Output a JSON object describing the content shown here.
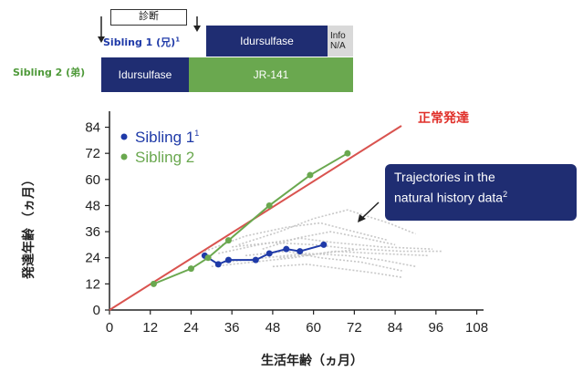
{
  "timeline": {
    "diagnosis_label": "診断",
    "sibling1_label": "Sibling 1 (兄)",
    "sibling1_sup": "1",
    "sibling2_label": "Sibling 2 (弟)",
    "bar_s1_drug": "Idursulfase",
    "bar_s1_info": "Info N/A",
    "bar_s2_drug1": "Idursulfase",
    "bar_s2_drug2": "JR-141",
    "colors": {
      "navy": "#1f2d72",
      "green": "#6aa84f",
      "gray": "#d9d9d9"
    }
  },
  "chart_data": {
    "type": "line",
    "xlabel": "生活年齢（ヵ月）",
    "ylabel": "発達年齢 （ヵ月）",
    "x_ticks": [
      0,
      12,
      24,
      36,
      48,
      60,
      72,
      84,
      96,
      108
    ],
    "y_ticks": [
      0,
      12,
      24,
      36,
      48,
      60,
      72,
      84
    ],
    "xlim": [
      0,
      110
    ],
    "ylim": [
      0,
      88
    ],
    "reference_line": {
      "label": "正常発達",
      "color": "#d9534f",
      "from": [
        0,
        0
      ],
      "to": [
        88,
        88
      ]
    },
    "legend": {
      "placement": "top-left"
    },
    "series": [
      {
        "name": "Sibling 1",
        "sup": "1",
        "color": "#1f3aa8",
        "x": [
          28,
          32,
          35,
          43,
          47,
          52,
          56,
          63
        ],
        "y": [
          25,
          21,
          23,
          23,
          26,
          28,
          27,
          30
        ]
      },
      {
        "name": "Sibling 2",
        "color": "#6aa84f",
        "x": [
          13,
          24,
          29,
          35,
          47,
          59,
          70
        ],
        "y": [
          12,
          19,
          24,
          32,
          48,
          62,
          72
        ]
      }
    ],
    "natural_history": {
      "color": "#c8c8c8",
      "lines": [
        {
          "x": [
            28,
            40,
            52,
            62,
            72,
            82
          ],
          "y": [
            27,
            34,
            38,
            40,
            36,
            32
          ]
        },
        {
          "x": [
            32,
            44,
            56,
            66,
            80,
            95
          ],
          "y": [
            26,
            30,
            33,
            31,
            29,
            28
          ]
        },
        {
          "x": [
            38,
            50,
            60,
            70,
            82,
            90
          ],
          "y": [
            30,
            36,
            42,
            46,
            40,
            35
          ]
        },
        {
          "x": [
            34,
            46,
            58,
            70,
            80,
            90
          ],
          "y": [
            22,
            24,
            26,
            25,
            23,
            20
          ]
        },
        {
          "x": [
            40,
            52,
            62,
            74,
            86
          ],
          "y": [
            25,
            27,
            24,
            22,
            18
          ]
        },
        {
          "x": [
            30,
            42,
            54,
            66,
            78,
            94
          ],
          "y": [
            20,
            22,
            24,
            27,
            26,
            25
          ]
        },
        {
          "x": [
            45,
            55,
            65,
            75,
            84
          ],
          "y": [
            28,
            33,
            36,
            33,
            30
          ]
        },
        {
          "x": [
            48,
            58,
            68,
            78,
            86
          ],
          "y": [
            20,
            21,
            19,
            17,
            15
          ]
        },
        {
          "x": [
            36,
            48,
            60,
            72
          ],
          "y": [
            29,
            31,
            30,
            28
          ]
        },
        {
          "x": [
            50,
            62,
            74,
            86,
            98
          ],
          "y": [
            24,
            26,
            28,
            27,
            27
          ]
        }
      ]
    },
    "callout": {
      "text_line1": "Trajectories in the",
      "text_line2": "natural history data",
      "sup": "2"
    }
  }
}
